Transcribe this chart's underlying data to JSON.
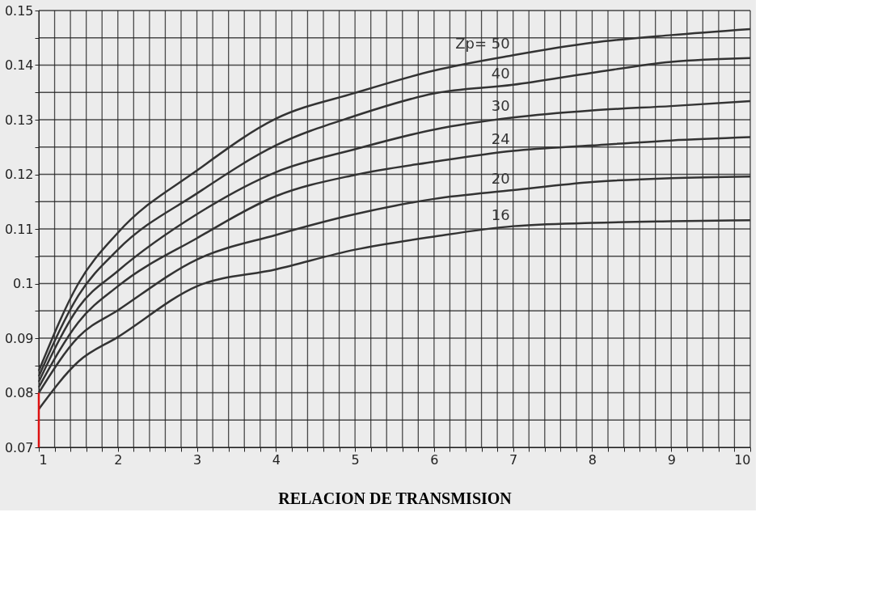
{
  "chart_data": {
    "type": "line",
    "xlabel": "RELACION DE TRANSMISION",
    "xlim": [
      1,
      10
    ],
    "ylim": [
      0.07,
      0.15
    ],
    "xticks": [
      1,
      {
        "value": 1.2,
        "label": null
      },
      {
        "value": 1.4,
        "label": null
      },
      {
        "value": 1.6,
        "label": null
      },
      {
        "value": 1.8,
        "label": null
      },
      2,
      {
        "value": 2.2,
        "label": null
      },
      {
        "value": 2.4,
        "label": null
      },
      {
        "value": 2.6,
        "label": null
      },
      {
        "value": 2.8,
        "label": null
      },
      3,
      {
        "value": 3.2,
        "label": null
      },
      {
        "value": 3.4,
        "label": null
      },
      {
        "value": 3.6,
        "label": null
      },
      {
        "value": 3.8,
        "label": null
      },
      4,
      {
        "value": 4.2,
        "label": null
      },
      {
        "value": 4.4,
        "label": null
      },
      {
        "value": 4.6,
        "label": null
      },
      {
        "value": 4.8,
        "label": null
      },
      5,
      {
        "value": 5.2,
        "label": null
      },
      {
        "value": 5.4,
        "label": null
      },
      {
        "value": 5.6,
        "label": null
      },
      {
        "value": 5.8,
        "label": null
      },
      6,
      {
        "value": 6.2,
        "label": null
      },
      {
        "value": 6.4,
        "label": null
      },
      {
        "value": 6.6,
        "label": null
      },
      {
        "value": 6.8,
        "label": null
      },
      7,
      {
        "value": 7.2,
        "label": null
      },
      {
        "value": 7.4,
        "label": null
      },
      {
        "value": 7.6,
        "label": null
      },
      {
        "value": 7.8,
        "label": null
      },
      8,
      {
        "value": 8.2,
        "label": null
      },
      {
        "value": 8.4,
        "label": null
      },
      {
        "value": 8.6,
        "label": null
      },
      {
        "value": 8.8,
        "label": null
      },
      9,
      {
        "value": 9.2,
        "label": null
      },
      {
        "value": 9.4,
        "label": null
      },
      {
        "value": 9.6,
        "label": null
      },
      {
        "value": 9.8,
        "label": null
      },
      10
    ],
    "yticks": [
      0.07,
      {
        "value": 0.075,
        "label": null
      },
      0.08,
      {
        "value": 0.085,
        "label": null
      },
      0.09,
      {
        "value": 0.095,
        "label": null
      },
      0.1,
      {
        "value": 0.105,
        "label": null
      },
      0.11,
      {
        "value": 0.115,
        "label": null
      },
      0.12,
      {
        "value": 0.125,
        "label": null
      },
      0.13,
      {
        "value": 0.135,
        "label": null
      },
      0.14,
      {
        "value": 0.145,
        "label": null
      },
      0.15
    ],
    "grid": true,
    "marker": "none",
    "line_style": "solid",
    "x": [
      1,
      1.5,
      2,
      3,
      4,
      5,
      6,
      7,
      8,
      9,
      10
    ],
    "series": [
      {
        "name": "Zp= 50",
        "color": "#333333",
        "values": [
          0.084,
          0.1,
          0.1093,
          0.1207,
          0.1302,
          0.1349,
          0.139,
          0.1418,
          0.1441,
          0.1455,
          0.1466
        ]
      },
      {
        "name": "40",
        "color": "#333333",
        "values": [
          0.083,
          0.0978,
          0.1062,
          0.1165,
          0.1253,
          0.1307,
          0.1348,
          0.1364,
          0.1386,
          0.1406,
          0.1413
        ]
      },
      {
        "name": "30",
        "color": "#333333",
        "values": [
          0.082,
          0.0956,
          0.1023,
          0.1127,
          0.1204,
          0.1246,
          0.1282,
          0.1304,
          0.1317,
          0.1325,
          0.1334
        ]
      },
      {
        "name": "24",
        "color": "#333333",
        "values": [
          0.081,
          0.0929,
          0.0995,
          0.1083,
          0.116,
          0.1199,
          0.1223,
          0.1243,
          0.1253,
          0.1262,
          0.1268
        ]
      },
      {
        "name": "20",
        "color": "#333333",
        "values": [
          0.08,
          0.0902,
          0.0951,
          0.1044,
          0.1089,
          0.1127,
          0.1155,
          0.1171,
          0.1186,
          0.1193,
          0.1196
        ]
      },
      {
        "name": "16",
        "color": "#333333",
        "values": [
          0.077,
          0.0857,
          0.0902,
          0.0995,
          0.1026,
          0.1062,
          0.1086,
          0.1105,
          0.1111,
          0.1114,
          0.1116
        ]
      },
      {
        "color": "#dd1111",
        "x": [
          1,
          1
        ],
        "values": [
          0.07,
          0.08
        ]
      }
    ]
  }
}
